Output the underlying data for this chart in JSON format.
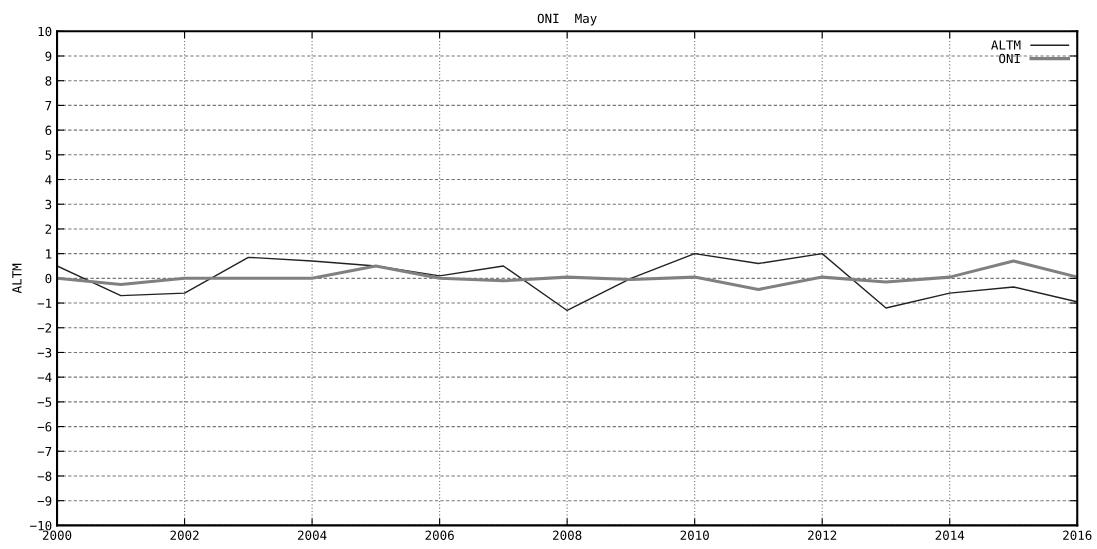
{
  "chart_data": {
    "type": "line",
    "title": "ONI  May",
    "ylabel": "ALTM",
    "x": [
      2000,
      2001,
      2002,
      2003,
      2004,
      2005,
      2006,
      2007,
      2008,
      2009,
      2010,
      2011,
      2012,
      2013,
      2014,
      2015,
      2016
    ],
    "series": [
      {
        "name": "ALTM",
        "color": "#222222",
        "values": [
          0.5,
          -0.7,
          -0.6,
          0.85,
          0.7,
          0.5,
          0.1,
          0.5,
          -1.3,
          0.0,
          1.0,
          0.6,
          1.0,
          -1.2,
          -0.6,
          -0.35,
          -0.95
        ]
      },
      {
        "name": "ONI",
        "color": "#808080",
        "values": [
          0,
          -0.25,
          0,
          0,
          0,
          0.5,
          0,
          -0.1,
          0.05,
          -0.05,
          0.05,
          -0.45,
          0.05,
          -0.15,
          0.05,
          0.7,
          0.05
        ]
      }
    ],
    "xlim": [
      2000,
      2016
    ],
    "xticks": [
      2000,
      2002,
      2004,
      2006,
      2008,
      2010,
      2012,
      2014,
      2016
    ],
    "ylim": [
      -10,
      10
    ],
    "yticks": [
      -10,
      -9,
      -8,
      -7,
      -6,
      -5,
      -4,
      -3,
      -2,
      -1,
      0,
      1,
      2,
      3,
      4,
      5,
      6,
      7,
      8,
      9,
      10
    ],
    "grid": true,
    "legend": "top right",
    "marker": "none",
    "line_style": "solid"
  }
}
